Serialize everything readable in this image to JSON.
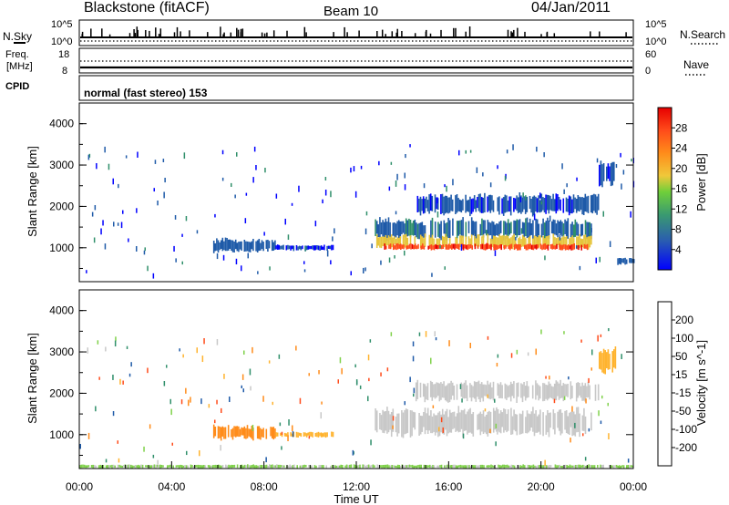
{
  "header": {
    "station": "Blackstone (fitACF)",
    "beam": "Beam 10",
    "date": "04/Jan/2011"
  },
  "nsky_panel": {
    "left_label": "N.Sky",
    "left_ticks": [
      "10^5",
      "10^0"
    ],
    "right_label": "N.Search",
    "right_ticks": [
      "10^5",
      "10^0"
    ]
  },
  "freq_panel": {
    "left_label_1": "Freq.",
    "left_label_2": "[MHz]",
    "left_ticks": [
      "18",
      "8"
    ],
    "right_label": "Nave",
    "right_ticks": [
      "60",
      "0"
    ]
  },
  "cpid": {
    "label": "CPID",
    "program": "normal (fast stereo) 153"
  },
  "colors": {
    "power_scale": [
      "#0000ff",
      "#1e5aa8",
      "#2f8f6a",
      "#5fbf3c",
      "#e6c53c",
      "#ff8c1a",
      "#ff4b1a",
      "#e60000"
    ],
    "velocity_scale": [
      "#0000ff",
      "#1e5aa8",
      "#2f8f6a",
      "#7fd14a",
      "#c8c8c8",
      "#ffb32e",
      "#ff8c1a",
      "#ff4b1a",
      "#e60000"
    ]
  },
  "chart_data": [
    {
      "type": "heatmap",
      "panel": "power",
      "ylabel": "Slant Range [km]",
      "ylim": [
        180,
        4500
      ],
      "yticks": [
        "1000",
        "2000",
        "3000",
        "4000"
      ],
      "xlim": [
        0,
        24
      ],
      "colorbar": {
        "label": "Power [dB]",
        "ticks": [
          "4",
          "8",
          "12",
          "16",
          "20",
          "24",
          "28"
        ],
        "range": [
          0,
          32
        ]
      },
      "regions": [
        {
          "t_start": 5.8,
          "t_end": 8.5,
          "r_center": 1050,
          "r_half": 150,
          "value": 6
        },
        {
          "t_start": 8.5,
          "t_end": 11.0,
          "r_center": 1000,
          "r_half": 60,
          "value": 4
        },
        {
          "t_start": 12.8,
          "t_end": 22.2,
          "r_center": 1450,
          "r_half": 230,
          "value": 7
        },
        {
          "t_start": 12.8,
          "t_end": 22.2,
          "r_center": 1150,
          "r_half": 150,
          "value": 18
        },
        {
          "t_start": 13.2,
          "t_end": 22.0,
          "r_center": 1020,
          "r_half": 70,
          "value": 27
        },
        {
          "t_start": 14.5,
          "t_end": 22.5,
          "r_center": 2050,
          "r_half": 220,
          "value": 5
        },
        {
          "t_start": 22.5,
          "t_end": 23.2,
          "r_center": 2800,
          "r_half": 280,
          "value": 5
        },
        {
          "t_start": 23.3,
          "t_end": 24.0,
          "r_center": 680,
          "r_half": 80,
          "value": 6
        }
      ]
    },
    {
      "type": "heatmap",
      "panel": "velocity",
      "ylabel": "Slant Range [km]",
      "xlabel": "Time UT",
      "ylim": [
        180,
        4500
      ],
      "yticks": [
        "1000",
        "2000",
        "3000",
        "4000"
      ],
      "xlim": [
        0,
        24
      ],
      "xticks": [
        "00:00",
        "04:00",
        "08:00",
        "12:00",
        "16:00",
        "20:00",
        "00:00"
      ],
      "colorbar": {
        "label": "Velocity [m s^-1]",
        "ticks": [
          "200",
          "100",
          "50",
          "15",
          "-15",
          "-50",
          "-100",
          "-200"
        ]
      },
      "regions": [
        {
          "t_start": 5.8,
          "t_end": 8.5,
          "r_center": 1050,
          "r_half": 150,
          "value": -70
        },
        {
          "t_start": 8.5,
          "t_end": 11.0,
          "r_center": 1000,
          "r_half": 60,
          "value": -40
        },
        {
          "t_start": 12.8,
          "t_end": 22.2,
          "r_center": 1300,
          "r_half": 300,
          "value": 0
        },
        {
          "t_start": 14.5,
          "t_end": 22.5,
          "r_center": 2050,
          "r_half": 220,
          "value": 0
        },
        {
          "t_start": 22.5,
          "t_end": 23.2,
          "r_center": 2800,
          "r_half": 280,
          "value": -30
        },
        {
          "t_start": 0.0,
          "t_end": 24.0,
          "r_center": 230,
          "r_half": 40,
          "value": 20
        }
      ]
    }
  ]
}
